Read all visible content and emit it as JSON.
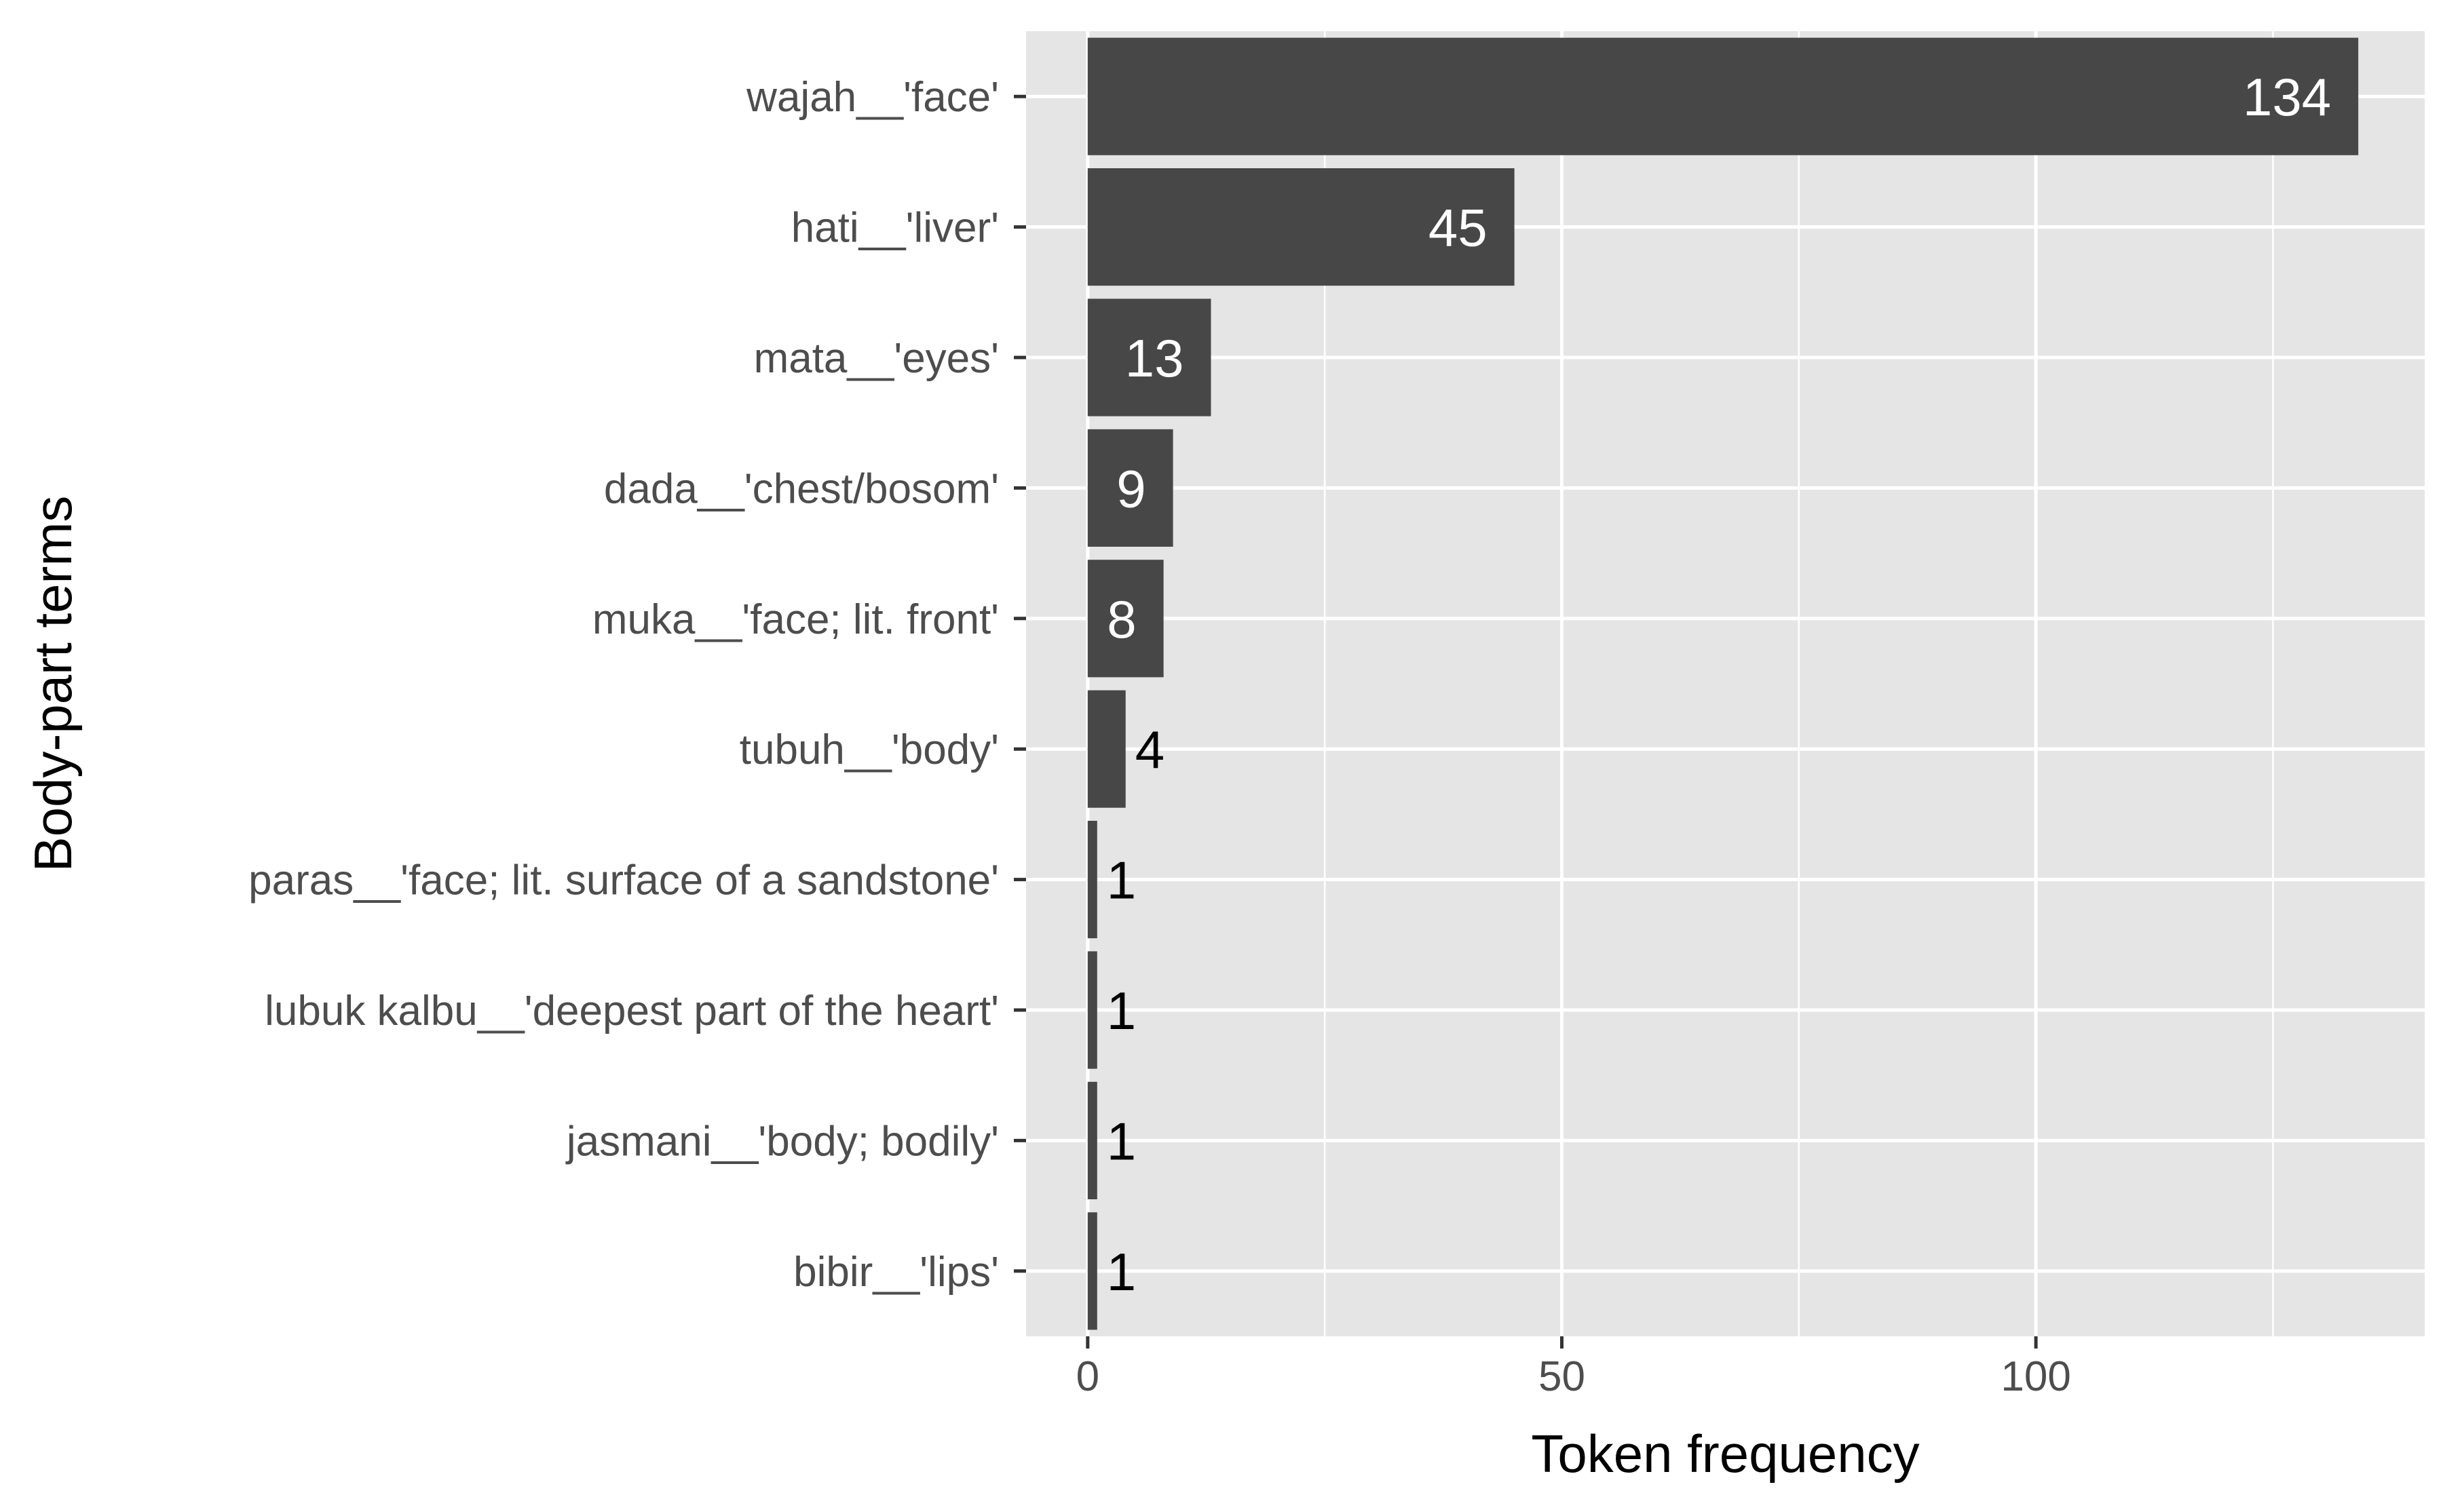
{
  "chart_data": {
    "type": "bar",
    "orientation": "horizontal",
    "categories": [
      "wajah__'face'",
      "hati__'liver'",
      "mata__'eyes'",
      "dada__'chest/bosom'",
      "muka__'face; lit. front'",
      "tubuh__'body'",
      "paras__'face; lit. surface of a sandstone'",
      "lubuk kalbu__'deepest part of the heart'",
      "jasmani__'body; bodily'",
      "bibir__'lips'"
    ],
    "values": [
      134,
      45,
      13,
      9,
      8,
      4,
      1,
      1,
      1,
      1
    ],
    "data_labels": [
      "134",
      "45",
      "13",
      "9",
      "8",
      "4",
      "1",
      "1",
      "1",
      "1"
    ],
    "xlabel": "Token frequency",
    "ylabel": "Body-part terms",
    "xlim": [
      -6.5,
      141
    ],
    "x_ticks": [
      0,
      50,
      100
    ],
    "x_tick_labels": [
      "0",
      "50",
      "100"
    ],
    "x_minor_ticks": [
      25,
      75,
      125
    ],
    "grid": true,
    "legend": "none",
    "colors": {
      "bar": "#474747",
      "panel": "#e5e5e5",
      "grid": "#ffffff",
      "label_inside": "#ffffff",
      "label_outside": "#000000",
      "tick_mark": "#333333"
    }
  }
}
